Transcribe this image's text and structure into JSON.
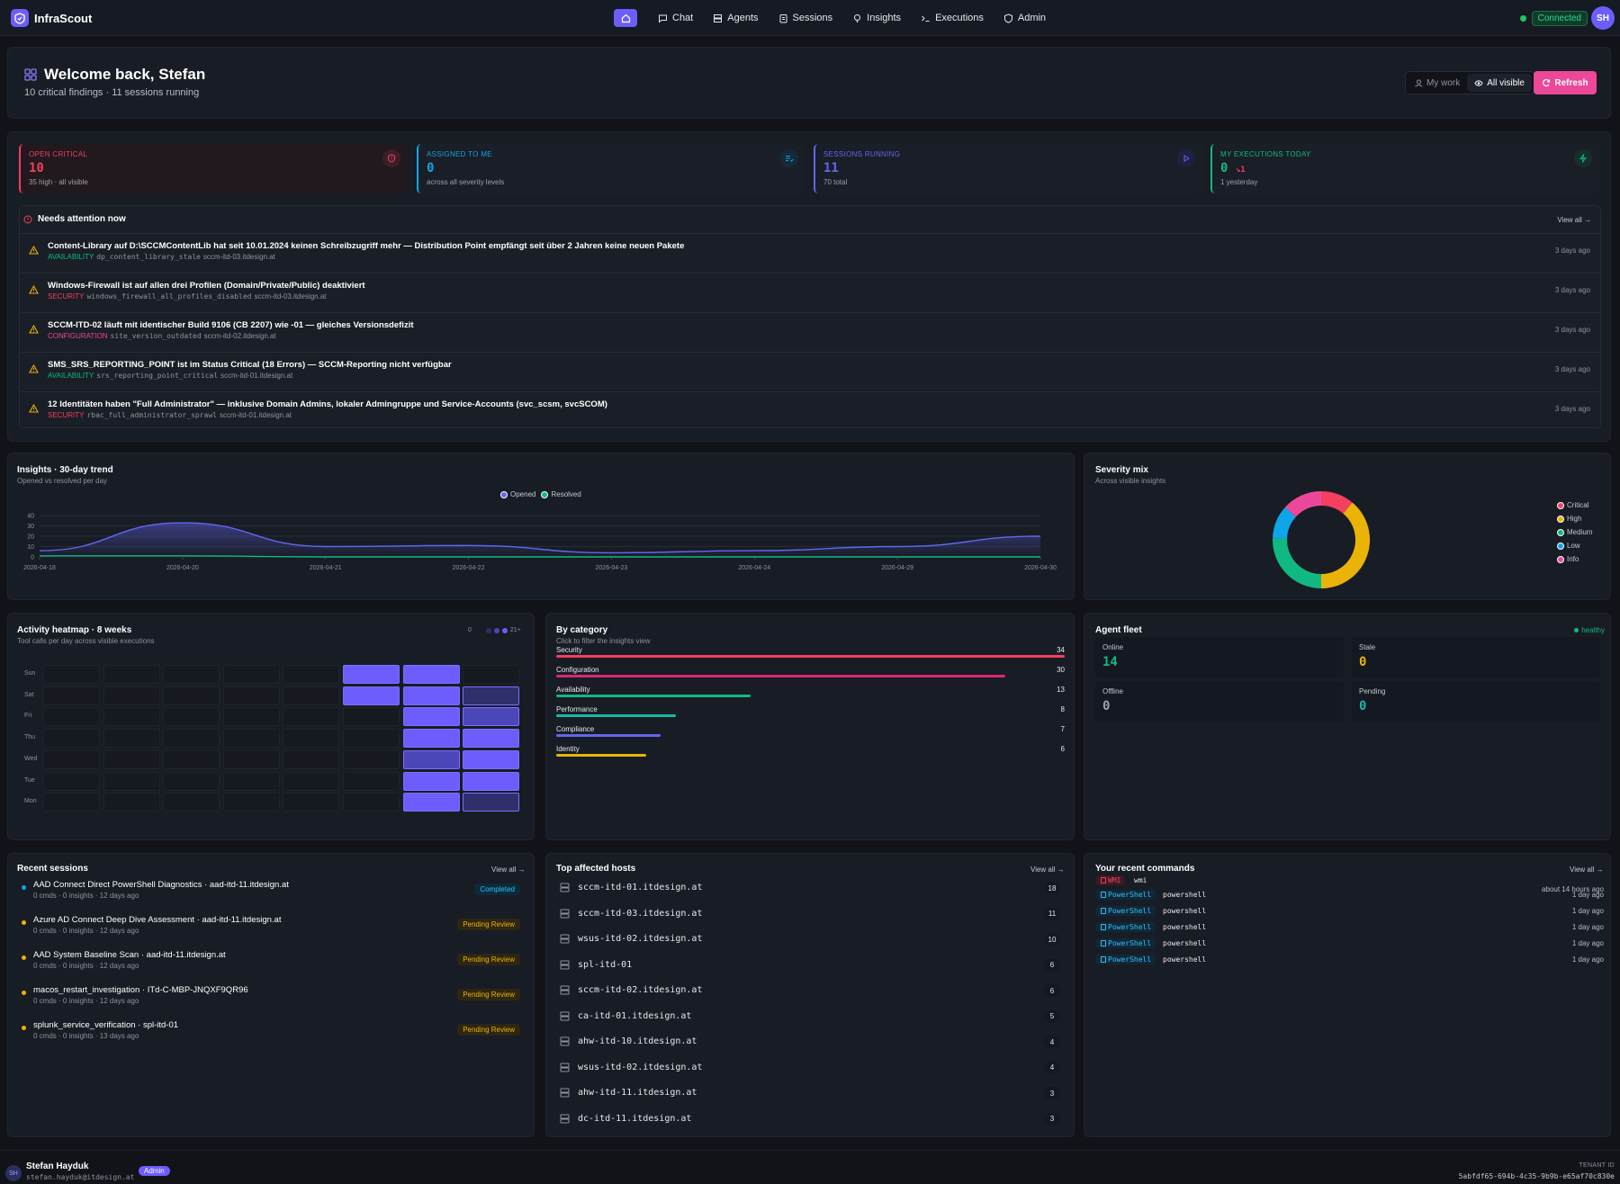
{
  "app": {
    "name": "InfraScout",
    "connection_status": "Connected",
    "user_initials": "SH"
  },
  "nav": {
    "items": [
      {
        "label": "Chat",
        "icon": "chat-icon"
      },
      {
        "label": "Agents",
        "icon": "server-icon"
      },
      {
        "label": "Sessions",
        "icon": "clipboard-icon"
      },
      {
        "label": "Insights",
        "icon": "lightbulb-icon"
      },
      {
        "label": "Executions",
        "icon": "terminal-icon"
      },
      {
        "label": "Admin",
        "icon": "shield-icon"
      }
    ]
  },
  "welcome": {
    "title": "Welcome back, Stefan",
    "subtitle": "10 critical findings · 11 sessions running",
    "toggle": {
      "my_work": "My work",
      "all_visible": "All visible"
    },
    "refresh_label": "Refresh"
  },
  "kpis": [
    {
      "label": "OPEN CRITICAL",
      "value": "10",
      "sub": "35 high · all visible",
      "color": "#f43f5e"
    },
    {
      "label": "ASSIGNED TO ME",
      "value": "0",
      "sub": "across all severity levels",
      "color": "#0ea5e9"
    },
    {
      "label": "SESSIONS RUNNING",
      "value": "11",
      "sub": "70 total",
      "color": "#6366f1"
    },
    {
      "label": "MY EXECUTIONS TODAY",
      "value": "0",
      "delta": "↘1",
      "sub": "1 yesterday",
      "color": "#10b981"
    }
  ],
  "needs_attention": {
    "title": "Needs attention now",
    "view_all": "View all →",
    "items": [
      {
        "title": "Content-Library auf D:\\SCCMContentLib hat seit 10.01.2024 keinen Schreibzugriff mehr — Distribution Point empfängt seit über 2 Jahren keine neuen Pakete",
        "category": "AVAILABILITY",
        "code": "dp_content_library_stale",
        "host": "sccm-itd-03.itdesign.at",
        "date": "3 days ago"
      },
      {
        "title": "Windows-Firewall ist auf allen drei Profilen (Domain/Private/Public) deaktiviert",
        "category": "SECURITY",
        "code": "windows_firewall_all_profiles_disabled",
        "host": "sccm-itd-03.itdesign.at",
        "date": "3 days ago"
      },
      {
        "title": "SCCM-ITD-02 läuft mit identischer Build 9106 (CB 2207) wie -01 — gleiches Versionsdefizit",
        "category": "CONFIGURATION",
        "code": "site_version_outdated",
        "host": "sccm-itd-02.itdesign.at",
        "date": "3 days ago"
      },
      {
        "title": "SMS_SRS_REPORTING_POINT ist im Status Critical (18 Errors) — SCCM-Reporting nicht verfügbar",
        "category": "AVAILABILITY",
        "code": "srs_reporting_point_critical",
        "host": "sccm-itd-01.itdesign.at",
        "date": "3 days ago"
      },
      {
        "title": "12 Identitäten haben \"Full Administrator\" — inklusive Domain Admins, lokaler Admingruppe und Service-Accounts (svc_scsm, svcSCOM)",
        "category": "SECURITY",
        "code": "rbac_full_administrator_sprawl",
        "host": "sccm-itd-01.itdesign.at",
        "date": "3 days ago"
      }
    ]
  },
  "trend": {
    "title": "Insights · 30-day trend",
    "subtitle": "Opened vs resolved per day"
  },
  "severity": {
    "title": "Severity mix",
    "subtitle": "Across visible insights"
  },
  "chart_data": [
    {
      "type": "line",
      "x": [
        "2026-04-18",
        "2026-04-20",
        "2026-04-21",
        "2026-04-22",
        "2026-04-23",
        "2026-04-24",
        "2026-04-29",
        "2026-04-30"
      ],
      "series": [
        {
          "name": "Opened",
          "values": [
            6,
            33,
            10,
            11,
            4,
            6,
            10,
            20
          ],
          "color": "#6366f1"
        },
        {
          "name": "Resolved",
          "values": [
            1,
            1,
            0,
            0,
            0,
            0,
            0,
            0
          ],
          "color": "#10b981"
        }
      ],
      "ylim": [
        0,
        40
      ],
      "yticks": [
        0,
        10,
        20,
        30,
        40
      ],
      "grid": true,
      "legend": "top-center"
    },
    {
      "type": "pie",
      "categories": [
        "Critical",
        "High",
        "Medium",
        "Low",
        "Info"
      ],
      "values": [
        10,
        35,
        23,
        10,
        12
      ],
      "colors": [
        "#f43f5e",
        "#eab308",
        "#10b981",
        "#0ea5e9",
        "#ec4899"
      ],
      "legend": "right"
    }
  ],
  "heatmap": {
    "title": "Activity heatmap · 8 weeks",
    "subtitle": "Tool calls per day across visible executions",
    "legend_min": "0",
    "legend_max": "21+",
    "days": [
      "Sun",
      "Sat",
      "Fri",
      "Thu",
      "Wed",
      "Tue",
      "Mon"
    ],
    "levels": [
      [
        0,
        0,
        0,
        0,
        0,
        3,
        3,
        0
      ],
      [
        0,
        0,
        0,
        0,
        0,
        3,
        3,
        1
      ],
      [
        0,
        0,
        0,
        0,
        0,
        0,
        3,
        2
      ],
      [
        0,
        0,
        0,
        0,
        0,
        0,
        3,
        3
      ],
      [
        0,
        0,
        0,
        0,
        0,
        0,
        2,
        3
      ],
      [
        0,
        0,
        0,
        0,
        0,
        0,
        3,
        3
      ],
      [
        0,
        0,
        0,
        0,
        0,
        0,
        3,
        1
      ]
    ]
  },
  "categories": {
    "title": "By category",
    "subtitle": "Click to filter the insights view",
    "items": [
      {
        "name": "Security",
        "count": 34,
        "color": "#f43f5e"
      },
      {
        "name": "Configuration",
        "count": 30,
        "color": "#db2777"
      },
      {
        "name": "Availability",
        "count": 13,
        "color": "#10b981"
      },
      {
        "name": "Performance",
        "count": 8,
        "color": "#14b8a6"
      },
      {
        "name": "Compliance",
        "count": 7,
        "color": "#6366f1"
      },
      {
        "name": "Identity",
        "count": 6,
        "color": "#eab308"
      }
    ]
  },
  "fleet": {
    "title": "Agent fleet",
    "status": "healthy",
    "stats": [
      {
        "label": "Online",
        "value": "14",
        "color": "#10b981"
      },
      {
        "label": "Stale",
        "value": "0",
        "color": "#eab308"
      },
      {
        "label": "Offline",
        "value": "0",
        "color": "#9aa0ad"
      },
      {
        "label": "Pending",
        "value": "0",
        "color": "#14b8a6"
      }
    ]
  },
  "sessions": {
    "title": "Recent sessions",
    "view_all": "View all →",
    "items": [
      {
        "title": "AAD Connect Direct PowerShell Diagnostics · aad-itd-11.itdesign.at",
        "meta": "0 cmds · 0 insights · 12 days ago",
        "status": "Completed",
        "dot": "#0ea5e9"
      },
      {
        "title": "Azure AD Connect Deep Dive Assessment · aad-itd-11.itdesign.at",
        "meta": "0 cmds · 0 insights · 12 days ago",
        "status": "Pending Review",
        "dot": "#eab308"
      },
      {
        "title": "AAD System Baseline Scan · aad-itd-11.itdesign.at",
        "meta": "0 cmds · 0 insights · 12 days ago",
        "status": "Pending Review",
        "dot": "#eab308"
      },
      {
        "title": "macos_restart_investigation · ITd-C-MBP-JNQXF9QR96",
        "meta": "0 cmds · 0 insights · 12 days ago",
        "status": "Pending Review",
        "dot": "#eab308"
      },
      {
        "title": "splunk_service_verification · spl-itd-01",
        "meta": "0 cmds · 0 insights · 13 days ago",
        "status": "Pending Review",
        "dot": "#eab308"
      }
    ]
  },
  "hosts": {
    "title": "Top affected hosts",
    "view_all": "View all →",
    "items": [
      {
        "name": "sccm-itd-01.itdesign.at",
        "count": "18"
      },
      {
        "name": "sccm-itd-03.itdesign.at",
        "count": "11"
      },
      {
        "name": "wsus-itd-02.itdesign.at",
        "count": "10"
      },
      {
        "name": "spl-itd-01",
        "count": "6"
      },
      {
        "name": "sccm-itd-02.itdesign.at",
        "count": "6"
      },
      {
        "name": "ca-itd-01.itdesign.at",
        "count": "5"
      },
      {
        "name": "ahw-itd-10.itdesign.at",
        "count": "4"
      },
      {
        "name": "wsus-itd-02.itdesign.at",
        "count": "4"
      },
      {
        "name": "ahw-itd-11.itdesign.at",
        "count": "3"
      },
      {
        "name": "dc-itd-11.itdesign.at",
        "count": "3"
      }
    ]
  },
  "commands": {
    "title": "Your recent commands",
    "view_all": "View all →",
    "items": [
      {
        "badge": "WMI",
        "name": "wmi",
        "date": "about 14 hours ago"
      },
      {
        "badge": "PowerShell",
        "name": "powershell",
        "date": "1 day ago"
      },
      {
        "badge": "PowerShell",
        "name": "powershell",
        "date": "1 day ago"
      },
      {
        "badge": "PowerShell",
        "name": "powershell",
        "date": "1 day ago"
      },
      {
        "badge": "PowerShell",
        "name": "powershell",
        "date": "1 day ago"
      },
      {
        "badge": "PowerShell",
        "name": "powershell",
        "date": "1 day ago"
      }
    ]
  },
  "footer": {
    "initials": "SH",
    "name": "Stefan Hayduk",
    "email": "stefan.hayduk@itdesign.at",
    "role": "Admin",
    "tenant_label": "TENANT ID",
    "tenant_id": "5abfdf65-694b-4c35-9b9b-e65af70c830e"
  }
}
